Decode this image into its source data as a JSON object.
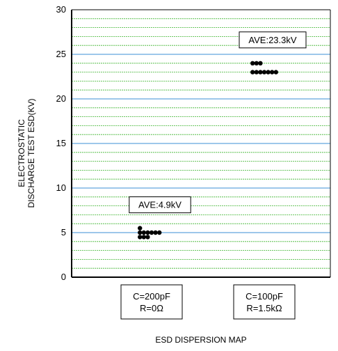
{
  "chart_data": {
    "type": "scatter",
    "title": "",
    "xlabel": "ESD DISPERSION MAP",
    "ylabel": "ELECTROSTATIC DISCHARGE TEST ESD(KV)",
    "ylabel_lines": [
      "ELECTROSTATIC",
      "DISCHARGE TEST ESD(KV)"
    ],
    "ylim": [
      0,
      30
    ],
    "yticks": [
      0,
      5,
      10,
      15,
      20,
      25,
      30
    ],
    "ytick_labels": [
      "0",
      "5",
      "10",
      "15",
      "20",
      "25",
      "30"
    ],
    "grid": true,
    "minor_grid_step": 1,
    "categories": [
      {
        "lines": [
          "C=200pF",
          "R=0Ω"
        ]
      },
      {
        "lines": [
          "C=100pF",
          "R=1.5kΩ"
        ]
      }
    ],
    "series": [
      {
        "category": 0,
        "average_label": "AVE:4.9kV",
        "points": [
          {
            "offset": -3,
            "y": 5.5
          },
          {
            "offset": -3,
            "y": 5.0
          },
          {
            "offset": -2,
            "y": 5.0
          },
          {
            "offset": -1,
            "y": 5.0
          },
          {
            "offset": 0,
            "y": 5.0
          },
          {
            "offset": 1,
            "y": 5.0
          },
          {
            "offset": 2,
            "y": 5.0
          },
          {
            "offset": -3,
            "y": 4.5
          },
          {
            "offset": -2,
            "y": 4.5
          },
          {
            "offset": -1,
            "y": 4.5
          }
        ]
      },
      {
        "category": 1,
        "average_label": "AVE:23.3kV",
        "points": [
          {
            "offset": -3,
            "y": 24.0
          },
          {
            "offset": -2,
            "y": 24.0
          },
          {
            "offset": -1,
            "y": 24.0
          },
          {
            "offset": -3,
            "y": 23.0
          },
          {
            "offset": -2,
            "y": 23.0
          },
          {
            "offset": -1,
            "y": 23.0
          },
          {
            "offset": 0,
            "y": 23.0
          },
          {
            "offset": 1,
            "y": 23.0
          },
          {
            "offset": 2,
            "y": 23.0
          },
          {
            "offset": 3,
            "y": 23.0
          }
        ]
      }
    ],
    "colors": {
      "major_grid": "#3b8fd6",
      "minor_grid": "#3cb32d",
      "axis": "#000000",
      "point": "#000000"
    }
  }
}
